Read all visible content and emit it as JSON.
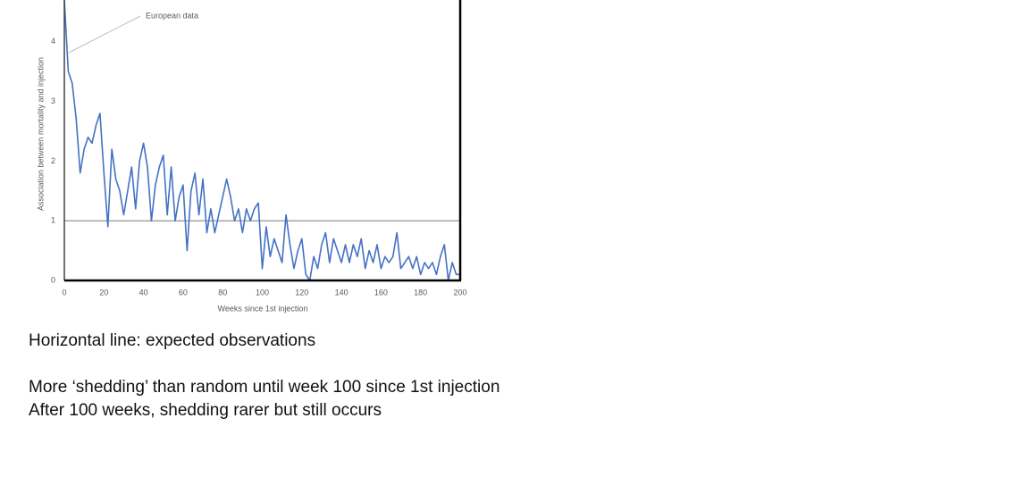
{
  "chart_data": {
    "type": "line",
    "y_label": "Association between mortality and injection",
    "x_label": "Weeks since 1st injection",
    "annotation": "European data",
    "color": "#4472c4",
    "reference_color": "#a5a5a5",
    "reference_lines": [
      1
    ],
    "x": [
      0,
      2,
      4,
      6,
      8,
      10,
      12,
      14,
      16,
      18,
      20,
      22,
      24,
      26,
      28,
      30,
      32,
      34,
      36,
      38,
      40,
      42,
      44,
      46,
      48,
      50,
      52,
      54,
      56,
      58,
      60,
      62,
      64,
      66,
      68,
      70,
      72,
      74,
      76,
      78,
      80,
      82,
      84,
      86,
      88,
      90,
      92,
      94,
      96,
      98,
      100,
      102,
      104,
      106,
      108,
      110,
      112,
      114,
      116,
      118,
      120,
      122,
      124,
      126,
      128,
      130,
      132,
      134,
      136,
      138,
      140,
      142,
      144,
      146,
      148,
      150,
      152,
      154,
      156,
      158,
      160,
      162,
      164,
      166,
      168,
      170,
      172,
      174,
      176,
      178,
      180,
      182,
      184,
      186,
      188,
      190,
      192,
      194,
      196,
      198,
      200
    ],
    "values": [
      4.7,
      3.5,
      3.3,
      2.7,
      1.8,
      2.2,
      2.4,
      2.3,
      2.6,
      2.8,
      1.8,
      0.9,
      2.2,
      1.7,
      1.5,
      1.1,
      1.5,
      1.9,
      1.2,
      2.0,
      2.3,
      1.9,
      1.0,
      1.6,
      1.9,
      2.1,
      1.1,
      1.9,
      1.0,
      1.4,
      1.6,
      0.5,
      1.5,
      1.8,
      1.1,
      1.7,
      0.8,
      1.2,
      0.8,
      1.1,
      1.4,
      1.7,
      1.4,
      1.0,
      1.2,
      0.8,
      1.2,
      1.0,
      1.2,
      1.3,
      0.2,
      0.9,
      0.4,
      0.7,
      0.5,
      0.3,
      1.1,
      0.6,
      0.2,
      0.5,
      0.7,
      0.1,
      0.0,
      0.4,
      0.2,
      0.6,
      0.8,
      0.3,
      0.7,
      0.5,
      0.3,
      0.6,
      0.3,
      0.6,
      0.4,
      0.7,
      0.2,
      0.5,
      0.3,
      0.6,
      0.2,
      0.4,
      0.3,
      0.4,
      0.8,
      0.2,
      0.3,
      0.4,
      0.2,
      0.4,
      0.1,
      0.3,
      0.2,
      0.3,
      0.1,
      0.4,
      0.6,
      0.0,
      0.3,
      0.1,
      0.1
    ],
    "xlim": [
      0,
      200
    ],
    "xticks": [
      0,
      20,
      40,
      60,
      80,
      100,
      120,
      140,
      160,
      180,
      200
    ],
    "ylim": [
      0,
      4.7
    ],
    "yticks": [
      0,
      1,
      2,
      3,
      4
    ]
  },
  "notes": [
    "Horizontal line: expected observations",
    "More ‘shedding’ than random until week 100 since 1st injection",
    "After 100 weeks, shedding rarer but still occurs"
  ]
}
